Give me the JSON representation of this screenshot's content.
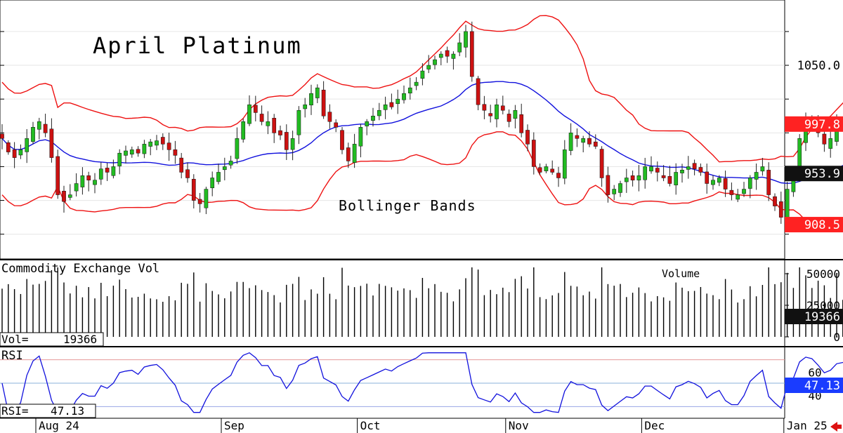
{
  "chart_data": {
    "type": "candlestick",
    "title": "April Platinum",
    "annotation": "Bollinger Bands",
    "colors": {
      "up": "#22bb22",
      "down": "#cc1111",
      "band": "#ee1111",
      "mid": "#1111dd",
      "rsi": "#1111dd",
      "volume": "#000000",
      "badge_red": "#ff2222",
      "badge_black": "#111111",
      "badge_blue": "#1a3cff"
    },
    "price_axis": {
      "range": [
        878,
        1108
      ],
      "ticks": [
        {
          "v": 1050,
          "label": "1050.0"
        }
      ],
      "gridlines": [
        1080,
        1050,
        1020,
        990,
        960,
        930,
        900
      ],
      "badges": [
        {
          "value": 997.8,
          "label": "997.8",
          "style": "red"
        },
        {
          "value": 953.9,
          "label": "953.9",
          "style": "black"
        },
        {
          "value": 908.5,
          "label": "908.5",
          "style": "red"
        }
      ]
    },
    "volume_axis": {
      "label": "Commodity Exchange Vol",
      "annotation": "Volume",
      "range": [
        0,
        60000
      ],
      "ticks": [
        {
          "v": 50000,
          "label": "50000"
        },
        {
          "v": 25000,
          "label": "25000"
        },
        {
          "v": 0,
          "label": "0"
        }
      ],
      "readout_label": "Vol=",
      "readout_value": "19366",
      "badge": "19366"
    },
    "rsi_axis": {
      "label": "RSI",
      "range": [
        20,
        80
      ],
      "ticks": [
        {
          "v": 60,
          "label": "60"
        },
        {
          "v": 40,
          "label": "40"
        }
      ],
      "levels": [
        70,
        50,
        30
      ],
      "readout_label": "RSI=",
      "readout_value": "47.13",
      "badge": "47.13"
    },
    "x_axis": {
      "months": [
        {
          "label": "Aug 24",
          "index": 0
        },
        {
          "label": "Sep",
          "index": 30
        },
        {
          "label": "Oct",
          "index": 52
        },
        {
          "label": "Nov",
          "index": 76
        },
        {
          "label": "Dec",
          "index": 98
        },
        {
          "label": "Jan 25",
          "index": 121
        }
      ]
    },
    "closes": [
      985,
      973,
      968,
      975,
      985,
      995,
      1000,
      990,
      968,
      935,
      929,
      935,
      945,
      952,
      948,
      948,
      958,
      955,
      960,
      972,
      974,
      975,
      972,
      980,
      982,
      983,
      980,
      975,
      970,
      955,
      950,
      930,
      927,
      940,
      950,
      955,
      960,
      965,
      985,
      1000,
      1015,
      1008,
      1000,
      1000,
      990,
      988,
      975,
      985,
      1010,
      1015,
      1025,
      1030,
      1005,
      1000,
      995,
      975,
      965,
      980,
      995,
      1000,
      1005,
      1010,
      1015,
      1013,
      1020,
      1025,
      1030,
      1035,
      1045,
      1050,
      1055,
      1060,
      1058,
      1060,
      1070,
      1080,
      1040,
      1015,
      1010,
      1005,
      1015,
      1010,
      1000,
      1010,
      990,
      980,
      960,
      955,
      960,
      955,
      950,
      975,
      990,
      985,
      985,
      980,
      978,
      950,
      935,
      940,
      945,
      950,
      948,
      952,
      960,
      960,
      955,
      950,
      945,
      955,
      957,
      960,
      958,
      955,
      945,
      948,
      950,
      940,
      935,
      935,
      940,
      950,
      955,
      960,
      935,
      925,
      915,
      940,
      950,
      985,
      1000,
      998,
      990,
      980,
      985,
      999,
      1002,
      1003,
      985,
      968
    ]
  }
}
